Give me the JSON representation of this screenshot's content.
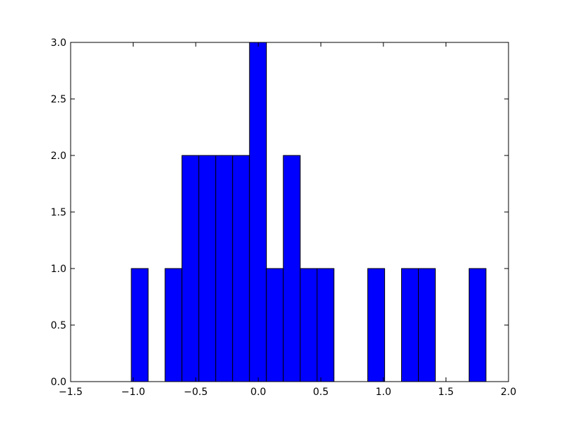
{
  "chart_data": {
    "type": "histogram",
    "bins": [
      -1.015,
      -0.88,
      -0.745,
      -0.61,
      -0.475,
      -0.34,
      -0.205,
      -0.07,
      0.065,
      0.2,
      0.335,
      0.47,
      0.605,
      0.74,
      0.875,
      1.01,
      1.145,
      1.28,
      1.415,
      1.55,
      1.685,
      1.82
    ],
    "values": [
      1,
      0,
      1,
      2,
      2,
      2,
      2,
      3,
      1,
      2,
      1,
      1,
      0,
      0,
      1,
      0,
      1,
      1,
      0,
      0,
      1
    ],
    "color": "#0000ff",
    "xlim": [
      -1.5,
      2.0
    ],
    "xticks": [
      {
        "value": -1.5,
        "label": "−1.5"
      },
      {
        "value": -1.0,
        "label": "−1.0"
      },
      {
        "value": -0.5,
        "label": "−0.5"
      },
      {
        "value": 0.0,
        "label": "0.0"
      },
      0.5,
      {
        "value": 1.0,
        "label": "1.0"
      },
      1.5,
      {
        "value": 2.0,
        "label": "2.0"
      }
    ],
    "ylim": [
      0,
      3.0
    ],
    "yticks": [
      {
        "value": 0.0,
        "label": "0.0"
      },
      0.5,
      {
        "value": 1.0,
        "label": "1.0"
      },
      1.5,
      {
        "value": 2.0,
        "label": "2.0"
      },
      2.5,
      {
        "value": 3.0,
        "label": "3.0"
      }
    ],
    "grid": false
  }
}
